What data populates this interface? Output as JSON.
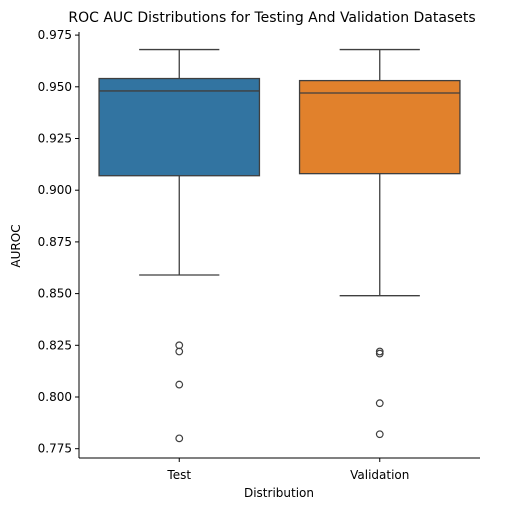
{
  "chart_data": {
    "type": "box",
    "title": "ROC AUC Distributions for Testing And Validation Datasets",
    "xlabel": "Distribution",
    "ylabel": "AUROC",
    "ylim": [
      0.7705,
      0.9765
    ],
    "yticks": [
      0.775,
      0.8,
      0.825,
      0.85,
      0.875,
      0.9,
      0.925,
      0.95,
      0.975
    ],
    "ytick_labels": [
      "0.775",
      "0.800",
      "0.825",
      "0.850",
      "0.875",
      "0.900",
      "0.925",
      "0.950",
      "0.975"
    ],
    "grid": false,
    "categories": [
      "Test",
      "Validation"
    ],
    "boxes": [
      {
        "category": "Test",
        "color": "#3274a1",
        "whisker_low": 0.859,
        "q1": 0.907,
        "median": 0.948,
        "q3": 0.954,
        "whisker_high": 0.968,
        "outliers": [
          0.825,
          0.822,
          0.806,
          0.78
        ]
      },
      {
        "category": "Validation",
        "color": "#e1812c",
        "whisker_low": 0.849,
        "q1": 0.908,
        "median": 0.947,
        "q3": 0.953,
        "whisker_high": 0.968,
        "outliers": [
          0.822,
          0.821,
          0.797,
          0.782
        ]
      }
    ]
  }
}
